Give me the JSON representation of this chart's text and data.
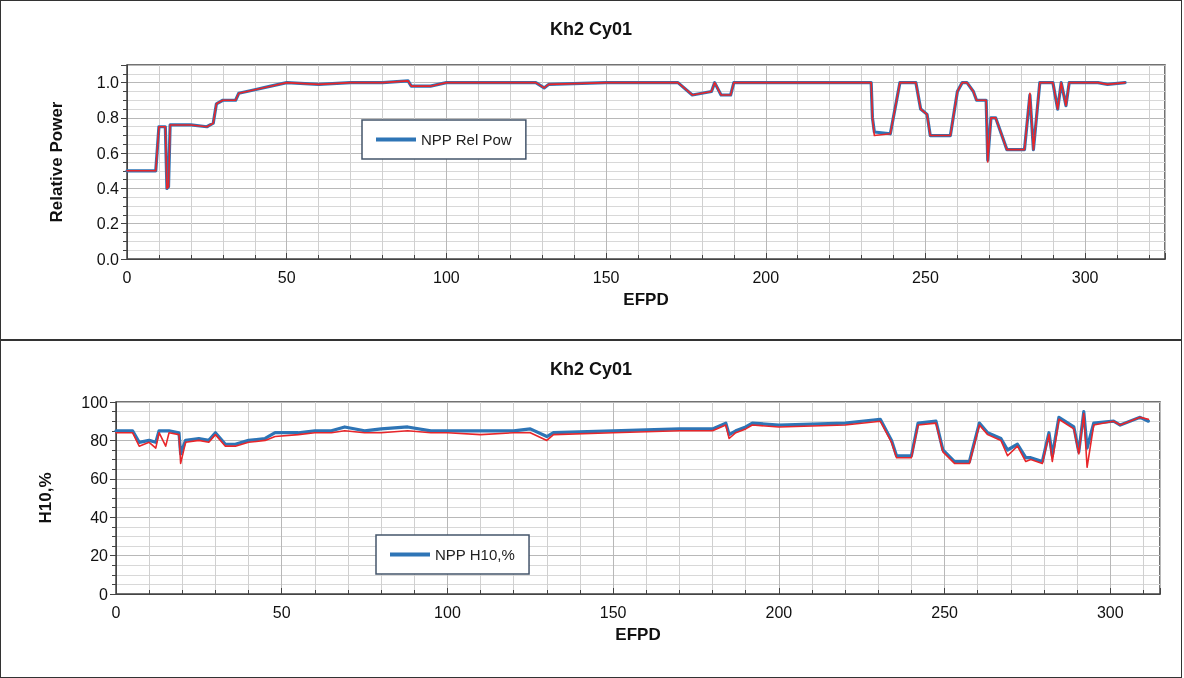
{
  "chart_data": [
    {
      "type": "line",
      "title": "Kh2 Cy01",
      "xlabel": "EFPD",
      "ylabel": "Relative Power",
      "xlim": [
        0,
        325
      ],
      "xticks": [
        0,
        50,
        100,
        150,
        200,
        250,
        300
      ],
      "ylim": [
        0,
        1.1
      ],
      "yticks": [
        {
          "value": 0,
          "label": "0.0"
        },
        {
          "value": 0.2,
          "label": "0.2"
        },
        {
          "value": 0.4,
          "label": "0.4"
        },
        {
          "value": 0.6,
          "label": "0.6"
        },
        {
          "value": 0.8,
          "label": "0.8"
        },
        {
          "value": 1,
          "label": "1.0"
        }
      ],
      "grid": true,
      "legend": "left",
      "marker": "none",
      "line_style": "solid",
      "x": [
        0,
        9,
        10,
        12,
        12.5,
        13,
        13.5,
        20,
        25,
        27,
        28,
        30,
        34,
        35,
        40,
        45,
        50,
        60,
        70,
        80,
        88,
        89,
        95,
        100,
        120,
        128,
        130.6,
        132,
        150,
        172.5,
        177,
        183,
        184,
        186,
        189,
        190,
        200,
        220,
        233,
        233.4,
        234,
        239,
        242,
        247,
        248.5,
        250.5,
        251.5,
        257.8,
        260,
        261.5,
        263,
        265,
        266,
        269,
        269.5,
        270.5,
        272,
        275.5,
        281,
        282.7,
        283.8,
        285.8,
        289.9,
        291.4,
        292.5,
        294,
        295,
        304,
        307,
        312.5
      ],
      "series": [
        {
          "name": "NPP Rel Pow",
          "color": "#2e75b6",
          "values": [
            0.5,
            0.5,
            0.75,
            0.75,
            0.4,
            0.41,
            0.76,
            0.76,
            0.75,
            0.77,
            0.88,
            0.9,
            0.9,
            0.94,
            0.96,
            0.98,
            1,
            0.99,
            1,
            1,
            1.01,
            0.98,
            0.98,
            1,
            1,
            1,
            0.97,
            0.99,
            1,
            1,
            0.93,
            0.95,
            1,
            0.93,
            0.93,
            1,
            1,
            1,
            1,
            0.8,
            0.72,
            0.71,
            1,
            1,
            0.85,
            0.82,
            0.7,
            0.7,
            0.95,
            1,
            1,
            0.95,
            0.9,
            0.9,
            0.56,
            0.8,
            0.8,
            0.62,
            0.62,
            0.93,
            0.62,
            1,
            1,
            0.85,
            1,
            0.87,
            1,
            1,
            0.99,
            1
          ]
        },
        {
          "color": "#e8262a",
          "values": [
            0.5,
            0.5,
            0.75,
            0.75,
            0.4,
            0.41,
            0.76,
            0.76,
            0.75,
            0.77,
            0.88,
            0.9,
            0.9,
            0.94,
            0.96,
            0.98,
            1,
            0.99,
            1,
            1,
            1.01,
            0.98,
            0.98,
            1,
            1,
            1,
            0.97,
            0.99,
            1,
            1,
            0.93,
            0.95,
            1,
            0.93,
            0.93,
            1,
            1,
            1,
            1,
            0.8,
            0.7,
            0.71,
            1,
            1,
            0.85,
            0.82,
            0.7,
            0.7,
            0.95,
            1,
            1,
            0.95,
            0.9,
            0.9,
            0.55,
            0.8,
            0.8,
            0.62,
            0.62,
            0.94,
            0.62,
            1,
            1,
            0.85,
            1,
            0.87,
            1,
            1,
            0.99,
            1
          ]
        }
      ]
    },
    {
      "type": "line",
      "title": "Kh2 Cy01",
      "xlabel": "EFPD",
      "ylabel": "H10,%",
      "xlim": [
        0,
        315
      ],
      "xticks": [
        0,
        50,
        100,
        150,
        200,
        250,
        300
      ],
      "ylim": [
        0,
        100
      ],
      "yticks": [
        0,
        20,
        40,
        60,
        80,
        100
      ],
      "grid": true,
      "legend": "bottom left",
      "marker": "none",
      "line_style": "solid",
      "x": [
        0,
        5,
        7,
        10,
        12,
        13,
        15,
        16,
        19,
        19.5,
        21,
        25,
        28,
        30,
        33,
        36,
        40,
        45,
        48,
        55,
        60,
        65,
        69,
        75,
        80,
        88,
        95,
        100,
        110,
        120,
        125,
        130,
        132,
        150,
        170,
        180,
        184,
        185,
        187,
        190,
        192,
        200,
        220,
        230.6,
        234,
        235.5,
        240,
        242,
        247.4,
        249.5,
        253,
        257.5,
        260.5,
        263,
        267,
        269,
        272,
        274.5,
        276,
        279.5,
        281.5,
        282.5,
        284.5,
        289,
        290.5,
        292,
        293,
        295,
        301,
        303,
        309,
        311.5
      ],
      "series": [
        {
          "name": "NPP H10,%",
          "color": "#2e75b6",
          "values": [
            85,
            85,
            79,
            80,
            79,
            85,
            85,
            85,
            84,
            73,
            80,
            81,
            80,
            84,
            78,
            78,
            80,
            81,
            84,
            84,
            85,
            85,
            87,
            85,
            86,
            87,
            85,
            85,
            85,
            85,
            86,
            82,
            84,
            85,
            86,
            86,
            89,
            83,
            85,
            87,
            89,
            88,
            89,
            91,
            80,
            72,
            72,
            89,
            90,
            75,
            69,
            69,
            89,
            84,
            81,
            75,
            78,
            71,
            71,
            69,
            84,
            72,
            92,
            87,
            74,
            95,
            76,
            89,
            90,
            88,
            92,
            90
          ]
        },
        {
          "color": "#e8262a",
          "values": [
            84,
            84,
            77,
            79,
            76,
            84,
            77,
            84,
            83,
            68,
            79,
            80,
            79,
            83,
            77,
            77,
            79,
            80,
            82,
            83,
            84,
            84,
            85,
            84,
            84,
            85,
            84,
            84,
            83,
            84,
            84,
            80,
            83,
            84,
            85,
            85,
            88,
            81,
            84,
            86,
            88,
            87,
            88,
            90,
            79,
            71,
            71,
            88,
            89,
            74,
            68,
            68,
            88,
            83,
            80,
            72,
            77,
            69,
            70,
            68,
            83,
            69,
            91,
            86,
            73,
            94,
            66,
            88,
            90,
            88,
            92,
            91
          ]
        }
      ]
    }
  ]
}
